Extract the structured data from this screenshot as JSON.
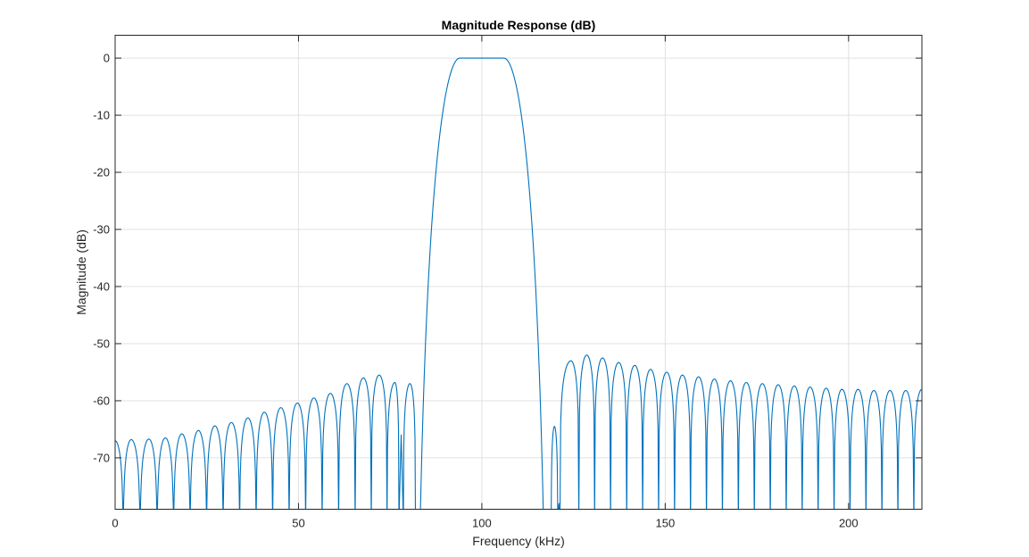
{
  "chart_data": {
    "type": "line",
    "title": "Magnitude Response (dB)",
    "xlabel": "Frequency (kHz)",
    "ylabel": "Magnitude (dB)",
    "xlim": [
      0,
      220
    ],
    "ylim": [
      -79,
      4
    ],
    "grid": true,
    "x_ticks": [
      0,
      50,
      100,
      150,
      200
    ],
    "x_tick_labels": [
      "0",
      "50",
      "100",
      "150",
      "200"
    ],
    "y_ticks": [
      0,
      -10,
      -20,
      -30,
      -40,
      -50,
      -60,
      -70
    ],
    "y_tick_labels": [
      "0",
      "-10",
      "-20",
      "-30",
      "-40",
      "-50",
      "-60",
      "-70"
    ],
    "series": [
      {
        "color": "#0072bd",
        "passband": {
          "center": 100,
          "flat_top_start": 94,
          "flat_top_end": 106,
          "edge_low": 81.5,
          "edge_high": 118.5
        },
        "lower_stopband_lobes": [
          {
            "x": 0.0,
            "y": -67.0
          },
          {
            "x": 4.4,
            "y": -66.8
          },
          {
            "x": 9.2,
            "y": -66.7
          },
          {
            "x": 13.7,
            "y": -66.5
          },
          {
            "x": 18.2,
            "y": -65.8
          },
          {
            "x": 22.7,
            "y": -65.2
          },
          {
            "x": 27.2,
            "y": -64.4
          },
          {
            "x": 31.7,
            "y": -63.8
          },
          {
            "x": 36.2,
            "y": -63.0
          },
          {
            "x": 40.7,
            "y": -62.0
          },
          {
            "x": 45.2,
            "y": -61.2
          },
          {
            "x": 49.7,
            "y": -60.4
          },
          {
            "x": 54.2,
            "y": -59.5
          },
          {
            "x": 58.7,
            "y": -58.7
          },
          {
            "x": 63.2,
            "y": -57.0
          },
          {
            "x": 67.7,
            "y": -56.0
          },
          {
            "x": 72.0,
            "y": -55.5
          },
          {
            "x": 76.3,
            "y": -56.8
          },
          {
            "x": 80.4,
            "y": -57.0
          }
        ],
        "lower_dip": {
          "x": 78.0,
          "y": -66.0
        },
        "upper_stopband_lobes": [
          {
            "x": 119.8,
            "y": -64.5
          },
          {
            "x": 124.3,
            "y": -53.0
          },
          {
            "x": 128.6,
            "y": -52.0
          },
          {
            "x": 132.9,
            "y": -52.5
          },
          {
            "x": 137.3,
            "y": -53.3
          },
          {
            "x": 141.7,
            "y": -53.8
          },
          {
            "x": 146.0,
            "y": -54.5
          },
          {
            "x": 150.4,
            "y": -55.0
          },
          {
            "x": 154.7,
            "y": -55.5
          },
          {
            "x": 159.1,
            "y": -55.8
          },
          {
            "x": 163.4,
            "y": -56.2
          },
          {
            "x": 167.8,
            "y": -56.5
          },
          {
            "x": 172.1,
            "y": -56.8
          },
          {
            "x": 176.5,
            "y": -57.0
          },
          {
            "x": 180.8,
            "y": -57.2
          },
          {
            "x": 185.2,
            "y": -57.4
          },
          {
            "x": 189.5,
            "y": -57.6
          },
          {
            "x": 193.9,
            "y": -57.8
          },
          {
            "x": 198.2,
            "y": -58.0
          },
          {
            "x": 202.6,
            "y": -58.0
          },
          {
            "x": 206.9,
            "y": -58.2
          },
          {
            "x": 211.3,
            "y": -58.2
          },
          {
            "x": 215.6,
            "y": -58.2
          },
          {
            "x": 220.0,
            "y": -58.0
          }
        ],
        "upper_dip": {
          "x": 121.0,
          "y": -78.0
        }
      }
    ]
  }
}
